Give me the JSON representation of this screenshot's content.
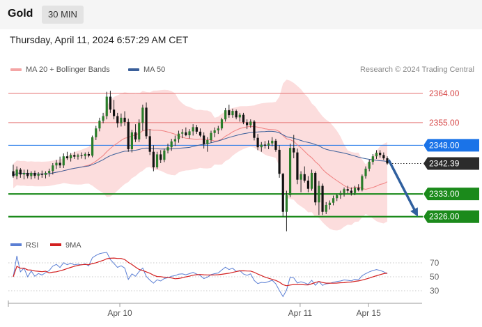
{
  "header": {
    "instrument": "Gold",
    "timeframe": "30 MIN"
  },
  "datetime": "Thursday, April 11, 2024 6:57:29 AM CET",
  "legend": {
    "bb": "MA 20 + Bollinger Bands",
    "ma50": "MA 50",
    "credit": "Research © 2024 Trading Central",
    "bb_color": "#f08080",
    "ma50_color": "#3a5f9a"
  },
  "rsi_legend": {
    "rsi": "RSI",
    "ma9": "9MA",
    "rsi_color": "#5b7fd4",
    "ma9_color": "#d32020"
  },
  "chart_data": [
    {
      "type": "candlestick",
      "title": "",
      "ylim": [
        2321,
        2367
      ],
      "levels": [
        {
          "label": "2364.00",
          "value": 2364,
          "kind": "resistance",
          "color": "#e57373"
        },
        {
          "label": "2355.00",
          "value": 2355,
          "kind": "resistance",
          "color": "#e57373"
        },
        {
          "label": "2348.00",
          "value": 2348,
          "kind": "pivot",
          "color": "#1a73e8"
        },
        {
          "label": "2333.00",
          "value": 2333,
          "kind": "support",
          "color": "#1b8a1b"
        },
        {
          "label": "2326.00",
          "value": 2326,
          "kind": "support",
          "color": "#1b8a1b"
        }
      ],
      "last_price": {
        "label": "2342.39",
        "value": 2342.39
      },
      "forecast": {
        "from": 2343.5,
        "to": 2326,
        "color": "#2f5f9e"
      },
      "ohlc": [
        [
          2340,
          2342,
          2338,
          2338.5
        ],
        [
          2338.5,
          2341.5,
          2337.5,
          2340.5
        ],
        [
          2340.5,
          2341,
          2338,
          2339
        ],
        [
          2339,
          2340.5,
          2337.5,
          2339.5
        ],
        [
          2339.5,
          2340.5,
          2337.8,
          2338.5
        ],
        [
          2338.5,
          2340,
          2337.5,
          2339.5
        ],
        [
          2339.5,
          2340.2,
          2337.8,
          2338.6
        ],
        [
          2338.6,
          2339.7,
          2337.4,
          2339.2
        ],
        [
          2339.2,
          2340.2,
          2338,
          2338.9
        ],
        [
          2338.9,
          2340,
          2337.8,
          2339.5
        ],
        [
          2339.5,
          2340.8,
          2338.3,
          2340.1
        ],
        [
          2340.1,
          2342.5,
          2339,
          2341.8
        ],
        [
          2341.8,
          2343.5,
          2340.7,
          2342.6
        ],
        [
          2342.6,
          2344.5,
          2341,
          2341.8
        ],
        [
          2341.8,
          2345.5,
          2341,
          2344.6
        ],
        [
          2344.6,
          2346,
          2343.5,
          2344
        ],
        [
          2344,
          2345.6,
          2343,
          2345
        ],
        [
          2345,
          2346,
          2343.8,
          2344.5
        ],
        [
          2344.5,
          2345.4,
          2343.6,
          2344.9
        ],
        [
          2344.9,
          2345.8,
          2343.9,
          2344.7
        ],
        [
          2344.7,
          2345.8,
          2343.7,
          2345.3
        ],
        [
          2345.3,
          2346,
          2344.3,
          2344.8
        ],
        [
          2344.8,
          2351,
          2344.3,
          2350.5
        ],
        [
          2350.5,
          2354,
          2349.6,
          2353.2
        ],
        [
          2353.2,
          2356.5,
          2352.3,
          2355.6
        ],
        [
          2355.6,
          2358,
          2354.8,
          2357
        ],
        [
          2357,
          2364.5,
          2356,
          2363
        ],
        [
          2363,
          2364.8,
          2358,
          2359
        ],
        [
          2359,
          2362,
          2356,
          2357
        ],
        [
          2357,
          2358,
          2353.5,
          2354.8
        ],
        [
          2354.8,
          2357.8,
          2353.8,
          2356.5
        ],
        [
          2356.5,
          2358.5,
          2354,
          2355.2
        ],
        [
          2355.2,
          2356.2,
          2346,
          2346.8
        ],
        [
          2346.8,
          2352.8,
          2345.8,
          2352
        ],
        [
          2352,
          2354.5,
          2349,
          2349.8
        ],
        [
          2349.8,
          2356,
          2349,
          2354.9
        ],
        [
          2354.9,
          2360.5,
          2352.5,
          2359.6
        ],
        [
          2359.6,
          2361.2,
          2350,
          2350.8
        ],
        [
          2350.8,
          2353,
          2345,
          2346
        ],
        [
          2346,
          2348,
          2340,
          2341.2
        ],
        [
          2341.2,
          2346,
          2340.7,
          2345.2
        ],
        [
          2345.2,
          2346.5,
          2342.5,
          2343.5
        ],
        [
          2343.5,
          2347,
          2342.8,
          2346.4
        ],
        [
          2346.4,
          2348.5,
          2345.5,
          2347.4
        ],
        [
          2347.4,
          2350,
          2346.3,
          2349.2
        ],
        [
          2349.2,
          2351,
          2347.8,
          2349.9
        ],
        [
          2349.9,
          2352.5,
          2348.8,
          2351.6
        ],
        [
          2351.6,
          2353,
          2350.2,
          2352
        ],
        [
          2352,
          2353.5,
          2350.8,
          2351.1
        ],
        [
          2351.1,
          2353,
          2350.1,
          2352.3
        ],
        [
          2352.3,
          2354.5,
          2351,
          2353.6
        ],
        [
          2353.6,
          2354.3,
          2351.5,
          2352.2
        ],
        [
          2352.2,
          2353.2,
          2350.5,
          2351
        ],
        [
          2351,
          2352,
          2347,
          2348.4
        ],
        [
          2348.4,
          2350.5,
          2346,
          2349.6
        ],
        [
          2349.6,
          2352.5,
          2348.8,
          2351.8
        ],
        [
          2351.8,
          2353.5,
          2350.5,
          2352.6
        ],
        [
          2352.6,
          2354,
          2351.5,
          2353.2
        ],
        [
          2353.2,
          2356.5,
          2352.6,
          2356
        ],
        [
          2356,
          2359.5,
          2355.3,
          2358.8
        ],
        [
          2358.8,
          2360.5,
          2356.5,
          2357.3
        ],
        [
          2357.3,
          2359.3,
          2356.5,
          2358.6
        ],
        [
          2358.6,
          2359,
          2356,
          2356.6
        ],
        [
          2356.6,
          2358,
          2355.3,
          2357.4
        ],
        [
          2357.4,
          2358,
          2354.5,
          2355.1
        ],
        [
          2355.1,
          2356,
          2353,
          2354.2
        ],
        [
          2354.2,
          2356,
          2353.4,
          2355.3
        ],
        [
          2355.3,
          2355.8,
          2349.5,
          2350.3
        ],
        [
          2350.3,
          2351.5,
          2346.5,
          2347.4
        ],
        [
          2347.4,
          2349,
          2346,
          2348.2
        ],
        [
          2348.2,
          2349.3,
          2347,
          2347.9
        ],
        [
          2347.9,
          2349.5,
          2346.8,
          2348.6
        ],
        [
          2348.6,
          2350.5,
          2347.7,
          2349.4
        ],
        [
          2349.4,
          2350,
          2346,
          2346.6
        ],
        [
          2346.6,
          2348,
          2338,
          2339.2
        ],
        [
          2339.2,
          2339.5,
          2326,
          2327.5
        ],
        [
          2327.5,
          2334,
          2321.5,
          2332.6
        ],
        [
          2332.6,
          2348.5,
          2332,
          2347.2
        ],
        [
          2347.2,
          2351.2,
          2344,
          2345.8
        ],
        [
          2345.8,
          2347,
          2336,
          2337.4
        ],
        [
          2337.4,
          2340,
          2333.5,
          2339.1
        ],
        [
          2339.1,
          2341.5,
          2336.5,
          2337.1
        ],
        [
          2337.1,
          2338.5,
          2333.5,
          2334.6
        ],
        [
          2334.6,
          2340.5,
          2334,
          2339.5
        ],
        [
          2339.5,
          2340,
          2329.5,
          2330.4
        ],
        [
          2330.4,
          2337,
          2326.5,
          2335.5
        ],
        [
          2335.5,
          2336.2,
          2326.5,
          2327.5
        ],
        [
          2327.5,
          2330.5,
          2326.8,
          2329.6
        ],
        [
          2329.6,
          2331,
          2328.2,
          2330.3
        ],
        [
          2330.3,
          2332.5,
          2329.5,
          2331.7
        ],
        [
          2331.7,
          2333,
          2330.8,
          2332.6
        ],
        [
          2332.6,
          2334,
          2331.5,
          2333.3
        ],
        [
          2333.3,
          2335,
          2332.2,
          2334.5
        ],
        [
          2334.5,
          2335.5,
          2333.2,
          2334
        ],
        [
          2334,
          2335,
          2332.5,
          2333.3
        ],
        [
          2333.3,
          2335.5,
          2332.6,
          2334.9
        ],
        [
          2334.9,
          2336,
          2333.8,
          2334.2
        ],
        [
          2334.2,
          2339,
          2333.8,
          2338.5
        ],
        [
          2338.5,
          2341.5,
          2337.7,
          2340.8
        ],
        [
          2340.8,
          2343.6,
          2340,
          2342.9
        ],
        [
          2342.9,
          2345.3,
          2342,
          2344.6
        ],
        [
          2344.6,
          2346.5,
          2343.8,
          2345.7
        ],
        [
          2345.7,
          2346.5,
          2344.2,
          2345
        ],
        [
          2345,
          2345.8,
          2343.5,
          2344
        ],
        [
          2344,
          2344.6,
          2342,
          2342.4
        ]
      ]
    },
    {
      "type": "line",
      "title": "RSI",
      "ylim": [
        17,
        85
      ],
      "yticks": [
        "70",
        "50",
        "30"
      ],
      "ytick_values": [
        70,
        50,
        30
      ],
      "xticks": [
        "Apr 10",
        "Apr 11",
        "Apr 15"
      ],
      "xtick_positions": [
        28.5,
        76.7,
        95
      ]
    }
  ]
}
